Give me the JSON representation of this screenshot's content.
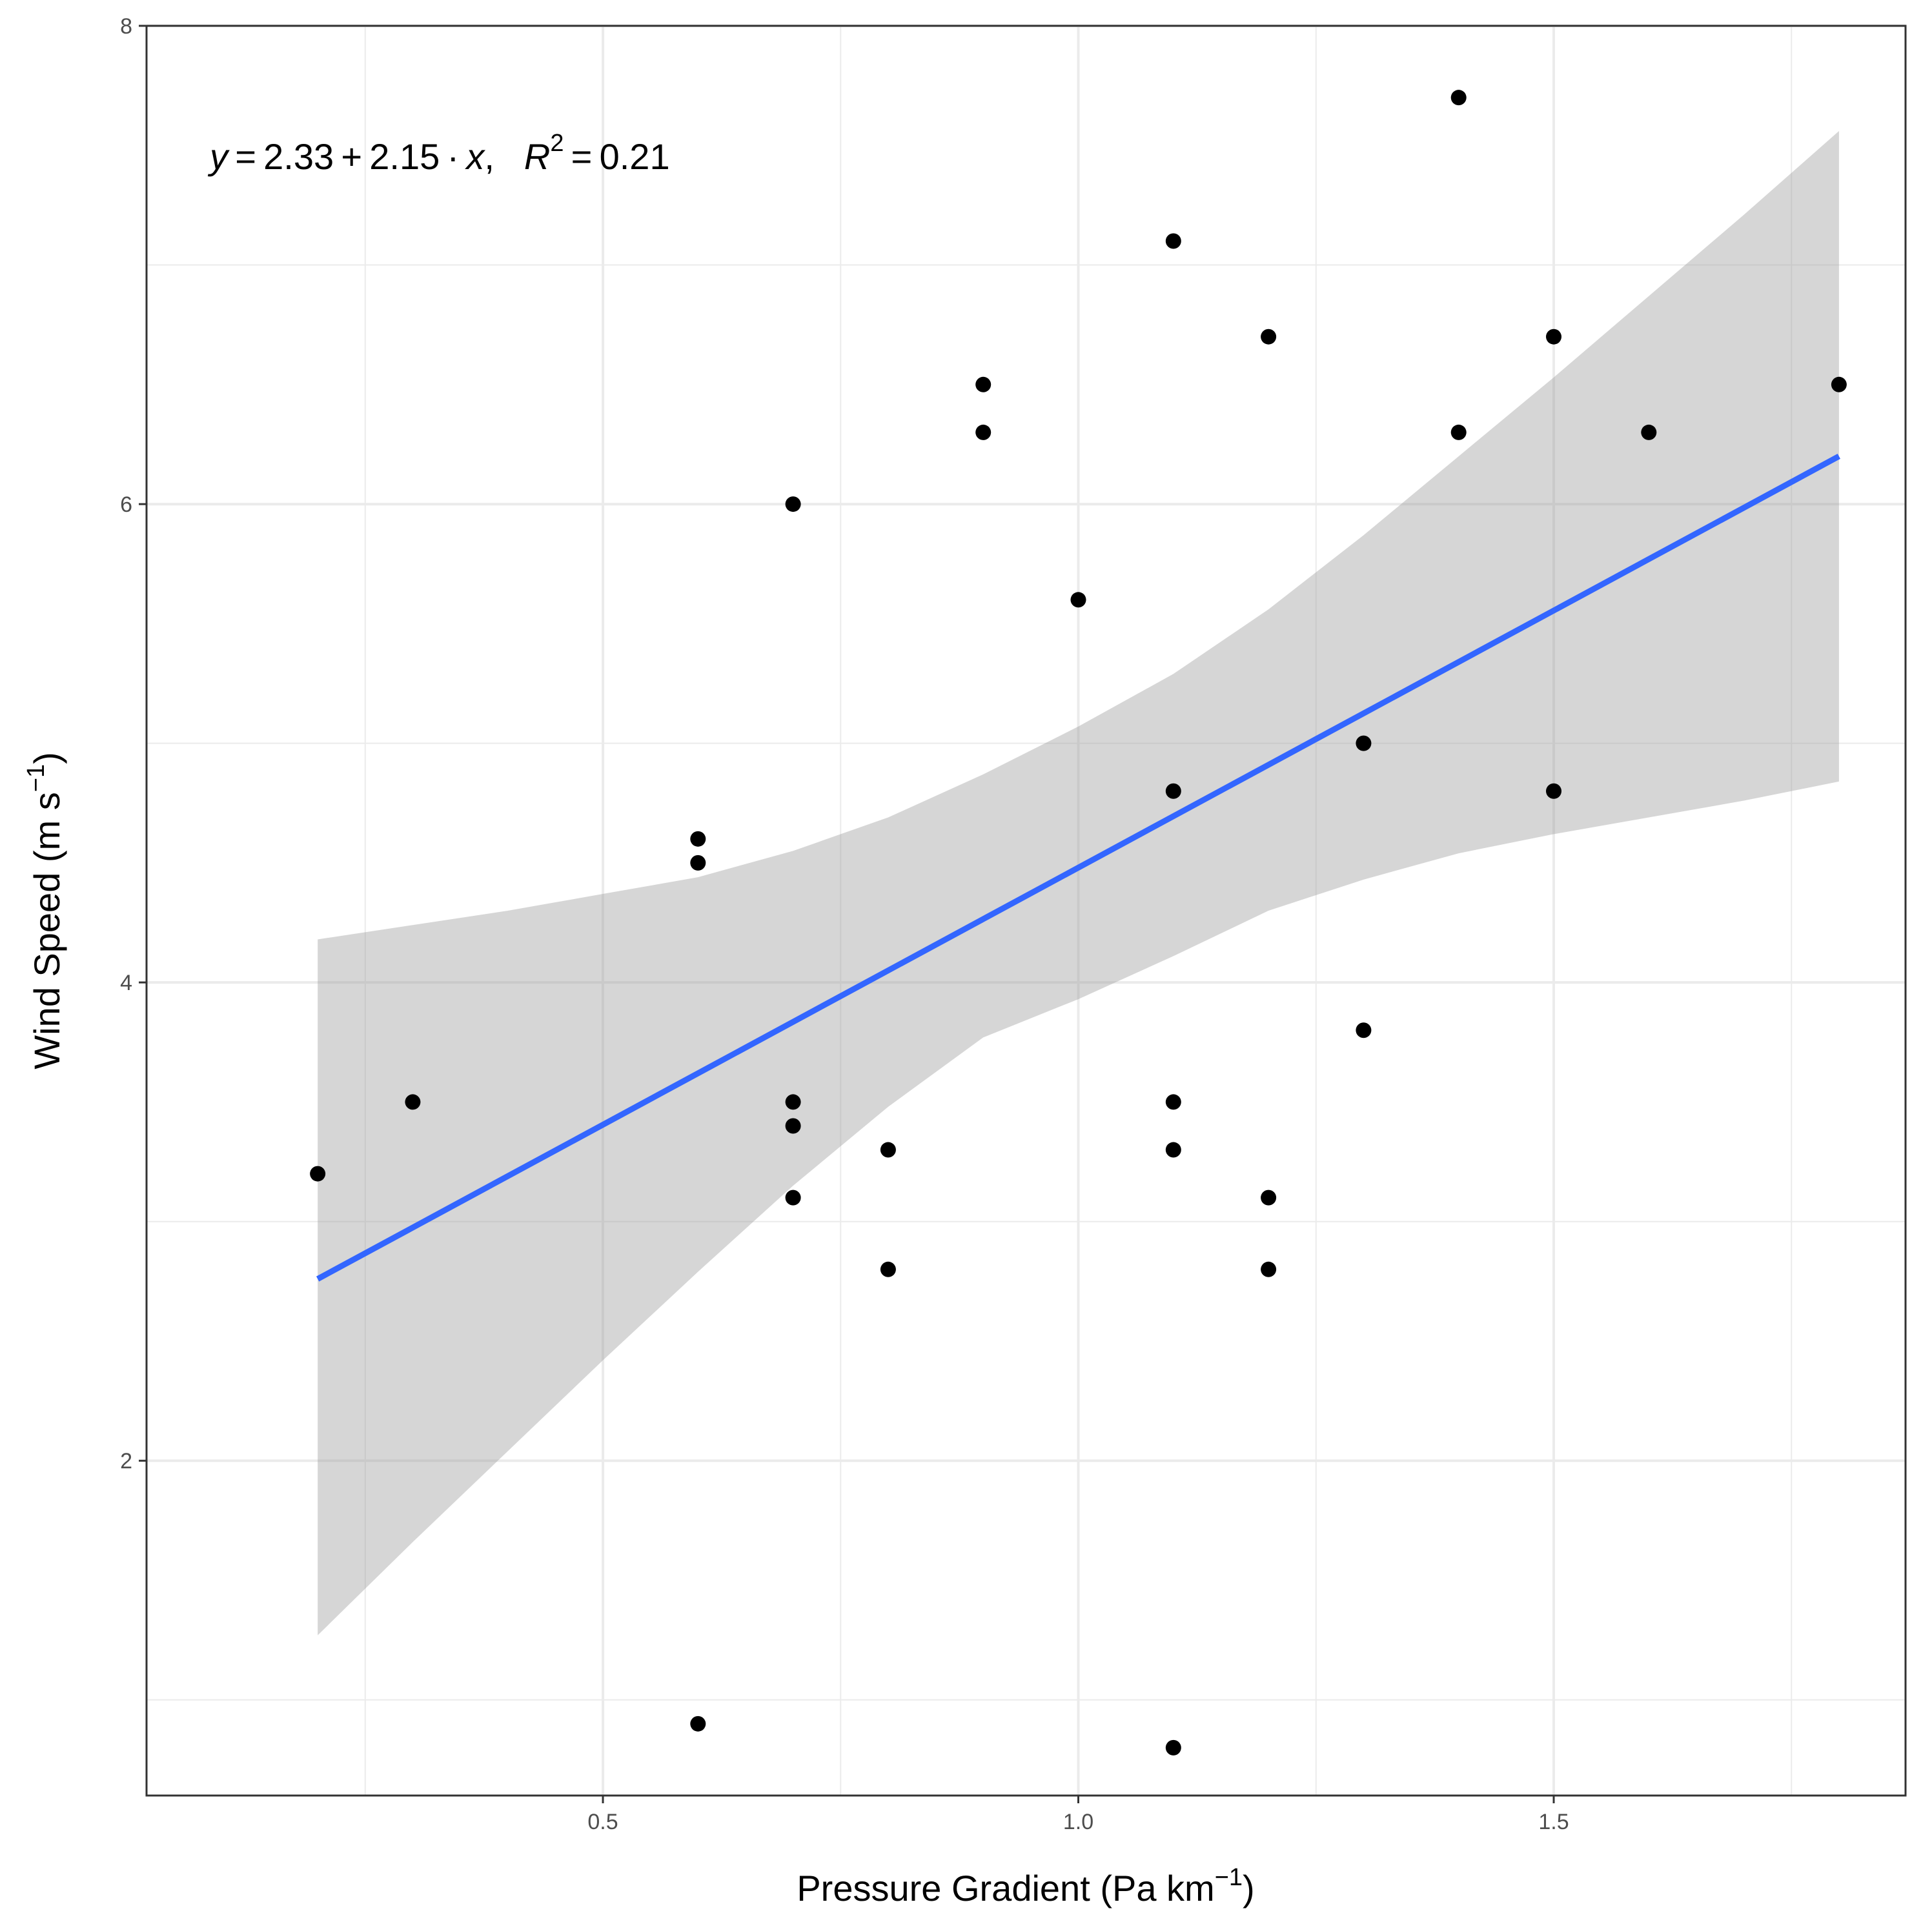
{
  "chart_data": {
    "type": "scatter",
    "title": "",
    "xlabel": {
      "main": "Pressure Gradient (Pa km",
      "sup": "−1",
      "close": ")"
    },
    "ylabel": {
      "main": "Wind Speed (m s",
      "sup": "−1",
      "close": ")"
    },
    "xlim": [
      0.02,
      1.87
    ],
    "ylim": [
      0.6,
      8.0
    ],
    "x_ticks": [
      0.5,
      1.0,
      1.5
    ],
    "x_tick_labels": [
      "0.5",
      "1.0",
      "1.5"
    ],
    "x_minor": [
      0.25,
      0.75,
      1.25,
      1.75
    ],
    "y_ticks": [
      2,
      4,
      6,
      8
    ],
    "y_tick_labels": [
      "2",
      "4",
      "6",
      "8"
    ],
    "y_minor": [
      1,
      3,
      5,
      7
    ],
    "grid": true,
    "annotation": {
      "y": "y",
      "eq": " = 2.33 + 2.15 · ",
      "x": "x",
      "comma": ",",
      "R": "R",
      "sup": "2",
      "rest": " = 0.21"
    },
    "regression": {
      "intercept": 2.33,
      "slope": 2.15,
      "x_range": [
        0.2,
        1.8
      ],
      "color": "#3366FF"
    },
    "confidence_band": {
      "color": "#999999",
      "x": [
        0.2,
        0.3,
        0.4,
        0.5,
        0.6,
        0.7,
        0.8,
        0.9,
        1.0,
        1.1,
        1.2,
        1.3,
        1.4,
        1.5,
        1.6,
        1.7,
        1.8
      ],
      "upper": [
        4.18,
        4.24,
        4.3,
        4.37,
        4.44,
        4.55,
        4.69,
        4.87,
        5.07,
        5.29,
        5.56,
        5.87,
        6.2,
        6.53,
        6.87,
        7.21,
        7.56
      ],
      "lower": [
        1.27,
        1.66,
        2.04,
        2.42,
        2.79,
        3.15,
        3.48,
        3.77,
        3.93,
        4.11,
        4.3,
        4.43,
        4.54,
        4.62,
        4.69,
        4.76,
        4.84
      ]
    },
    "points": {
      "x": [
        0.2,
        0.3,
        0.6,
        0.6,
        0.6,
        0.7,
        0.7,
        0.7,
        0.7,
        0.8,
        0.8,
        0.9,
        0.9,
        1.0,
        1.1,
        1.1,
        1.1,
        1.1,
        1.1,
        1.2,
        1.2,
        1.2,
        1.3,
        1.3,
        1.4,
        1.4,
        1.5,
        1.5,
        1.6,
        1.8
      ],
      "y": [
        3.2,
        3.5,
        4.6,
        4.5,
        0.9,
        6.0,
        3.5,
        3.4,
        3.1,
        3.3,
        2.8,
        6.5,
        6.3,
        5.6,
        7.1,
        4.8,
        3.5,
        3.3,
        0.8,
        6.7,
        3.1,
        2.8,
        5.0,
        3.8,
        7.7,
        6.3,
        6.7,
        4.8,
        6.3,
        6.5
      ]
    }
  }
}
